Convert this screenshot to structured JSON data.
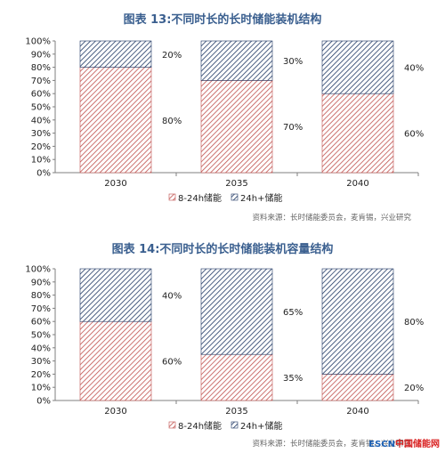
{
  "chart_data": [
    {
      "type": "bar",
      "stacked": true,
      "title": "图表 13:不同时长的长时储能装机结构",
      "categories": [
        "2030",
        "2035",
        "2040"
      ],
      "series": [
        {
          "name": "8-24h储能",
          "values": [
            80,
            70,
            60
          ],
          "labels": [
            "80%",
            "70%",
            "60%"
          ],
          "color": "#c0504d"
        },
        {
          "name": "24h+储能",
          "values": [
            20,
            30,
            40
          ],
          "labels": [
            "20%",
            "30%",
            "40%"
          ],
          "color": "#1f3864"
        }
      ],
      "yticks": [
        "0%",
        "10%",
        "20%",
        "30%",
        "40%",
        "50%",
        "60%",
        "70%",
        "80%",
        "90%",
        "100%"
      ],
      "ylim": [
        0,
        100
      ],
      "legend_position": "bottom",
      "source": "资料来源：长时储能委员会，麦肯锡，兴业研究"
    },
    {
      "type": "bar",
      "stacked": true,
      "title": "图表 14:不同时长的长时储能装机容量结构",
      "categories": [
        "2030",
        "2035",
        "2040"
      ],
      "series": [
        {
          "name": "8-24h储能",
          "values": [
            60,
            35,
            20
          ],
          "labels": [
            "60%",
            "35%",
            "20%"
          ],
          "color": "#c0504d"
        },
        {
          "name": "24h+储能",
          "values": [
            40,
            65,
            80
          ],
          "labels": [
            "40%",
            "65%",
            "80%"
          ],
          "color": "#1f3864"
        }
      ],
      "yticks": [
        "0%",
        "10%",
        "20%",
        "30%",
        "40%",
        "50%",
        "60%",
        "70%",
        "80%",
        "90%",
        "100%"
      ],
      "ylim": [
        0,
        100
      ],
      "legend_position": "bottom",
      "source": "资料来源：长时储能委员会，麦肯锡，兴业研究"
    }
  ],
  "watermark": {
    "part1": "ESCN",
    "part2": "中国储能网"
  }
}
